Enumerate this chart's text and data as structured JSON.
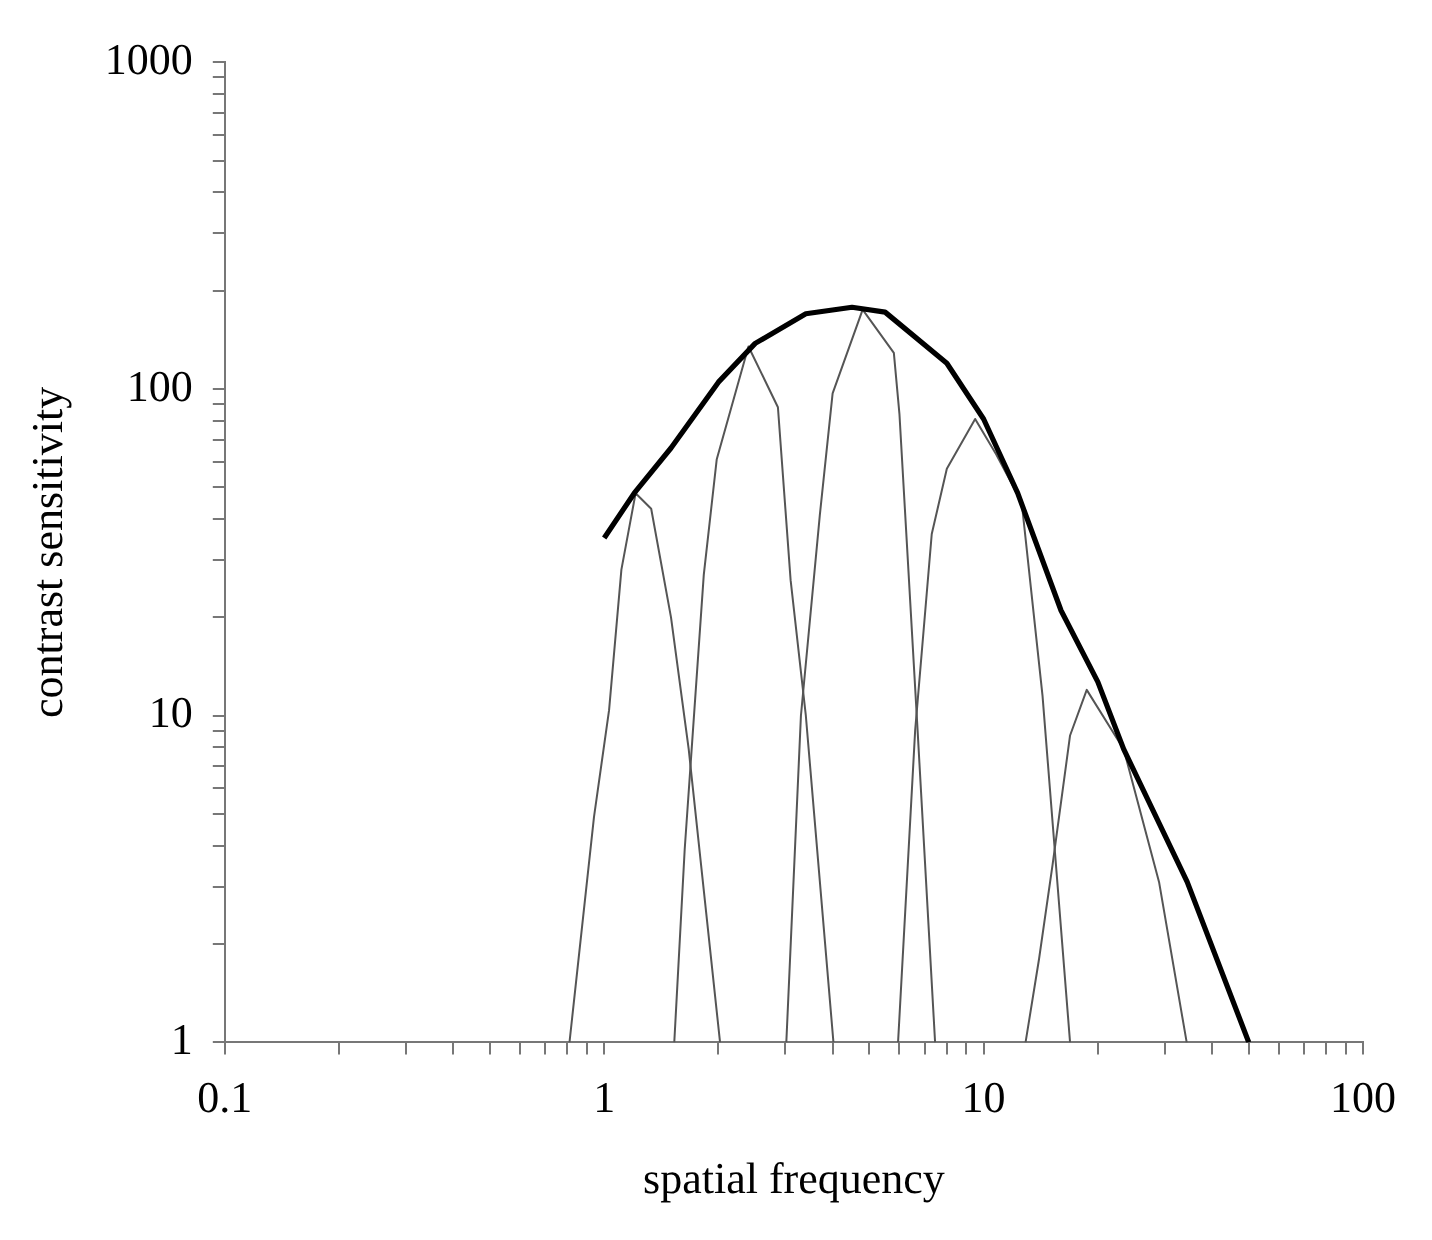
{
  "chart_data": {
    "type": "line",
    "xlabel": "spatial frequency",
    "ylabel": "contrast sensitivity",
    "log": "xy",
    "grid": false,
    "legend": false,
    "marker": "none",
    "line_style": "solid",
    "xlim": [
      0.1,
      100
    ],
    "ylim": [
      1,
      1000
    ],
    "xticks": [
      0.1,
      {
        "value": 0.2,
        "label": null
      },
      {
        "value": 0.3,
        "label": null
      },
      {
        "value": 0.4,
        "label": null
      },
      {
        "value": 0.5,
        "label": null
      },
      {
        "value": 0.6,
        "label": null
      },
      {
        "value": 0.7,
        "label": null
      },
      {
        "value": 0.8,
        "label": null
      },
      {
        "value": 0.9,
        "label": null
      },
      1,
      {
        "value": 2,
        "label": null
      },
      {
        "value": 3,
        "label": null
      },
      {
        "value": 4,
        "label": null
      },
      {
        "value": 5,
        "label": null
      },
      {
        "value": 6,
        "label": null
      },
      {
        "value": 7,
        "label": null
      },
      {
        "value": 8,
        "label": null
      },
      {
        "value": 9,
        "label": null
      },
      10,
      {
        "value": 20,
        "label": null
      },
      {
        "value": 30,
        "label": null
      },
      {
        "value": 40,
        "label": null
      },
      {
        "value": 50,
        "label": null
      },
      {
        "value": 60,
        "label": null
      },
      {
        "value": 70,
        "label": null
      },
      {
        "value": 80,
        "label": null
      },
      {
        "value": 90,
        "label": null
      },
      100
    ],
    "yticks": [
      1,
      {
        "value": 2,
        "label": null
      },
      {
        "value": 3,
        "label": null
      },
      {
        "value": 4,
        "label": null
      },
      {
        "value": 5,
        "label": null
      },
      {
        "value": 6,
        "label": null
      },
      {
        "value": 7,
        "label": null
      },
      {
        "value": 8,
        "label": null
      },
      {
        "value": 9,
        "label": null
      },
      10,
      {
        "value": 20,
        "label": null
      },
      {
        "value": 30,
        "label": null
      },
      {
        "value": 40,
        "label": null
      },
      {
        "value": 50,
        "label": null
      },
      {
        "value": 60,
        "label": null
      },
      {
        "value": 70,
        "label": null
      },
      {
        "value": 80,
        "label": null
      },
      {
        "value": 90,
        "label": null
      },
      100,
      {
        "value": 200,
        "label": null
      },
      {
        "value": 300,
        "label": null
      },
      {
        "value": 400,
        "label": null
      },
      {
        "value": 500,
        "label": null
      },
      {
        "value": 600,
        "label": null
      },
      {
        "value": 700,
        "label": null
      },
      {
        "value": 800,
        "label": null
      },
      {
        "value": 900,
        "label": null
      },
      1000
    ],
    "series": [
      {
        "color": "#000000",
        "x": [
          1,
          1.2,
          1.5,
          2,
          2.5,
          3.4,
          4.5,
          5.5,
          8,
          10,
          12.3,
          16,
          20,
          23.4,
          34.4,
          50
        ],
        "values": [
          35,
          48,
          66,
          105,
          138,
          170,
          178,
          172,
          120,
          81,
          48,
          21,
          12.7,
          7.9,
          3.1,
          1
        ]
      },
      {
        "color": "#555555",
        "x": [
          0.81,
          0.94,
          1.03,
          1.11,
          1.21,
          1.33,
          1.5,
          1.67,
          2.02
        ],
        "values": [
          1,
          4.9,
          10.4,
          28,
          48,
          43,
          20,
          7.9,
          1
        ]
      },
      {
        "color": "#555555",
        "x": [
          1.53,
          1.63,
          1.83,
          1.98,
          2.4,
          2.87,
          3.1,
          3.4,
          4.02
        ],
        "values": [
          1,
          3.9,
          27,
          61,
          135,
          88,
          26,
          10,
          1
        ]
      },
      {
        "color": "#555555",
        "x": [
          3.02,
          3.3,
          3.7,
          4,
          4.8,
          5.8,
          6,
          6.7,
          7.45
        ],
        "values": [
          1,
          10,
          41,
          97,
          175,
          129,
          84,
          9,
          1
        ]
      },
      {
        "color": "#555555",
        "x": [
          5.95,
          6.6,
          7.3,
          8,
          9.5,
          10.8,
          12.6,
          14.3,
          16.9
        ],
        "values": [
          1,
          9,
          36,
          57,
          81,
          63,
          45,
          11.5,
          1
        ]
      },
      {
        "color": "#555555",
        "x": [
          12.9,
          14,
          15.2,
          16.9,
          18.7,
          23.4,
          29,
          34.3
        ],
        "values": [
          1,
          1.8,
          3.5,
          8.7,
          12,
          7.9,
          3.1,
          1
        ]
      }
    ]
  }
}
